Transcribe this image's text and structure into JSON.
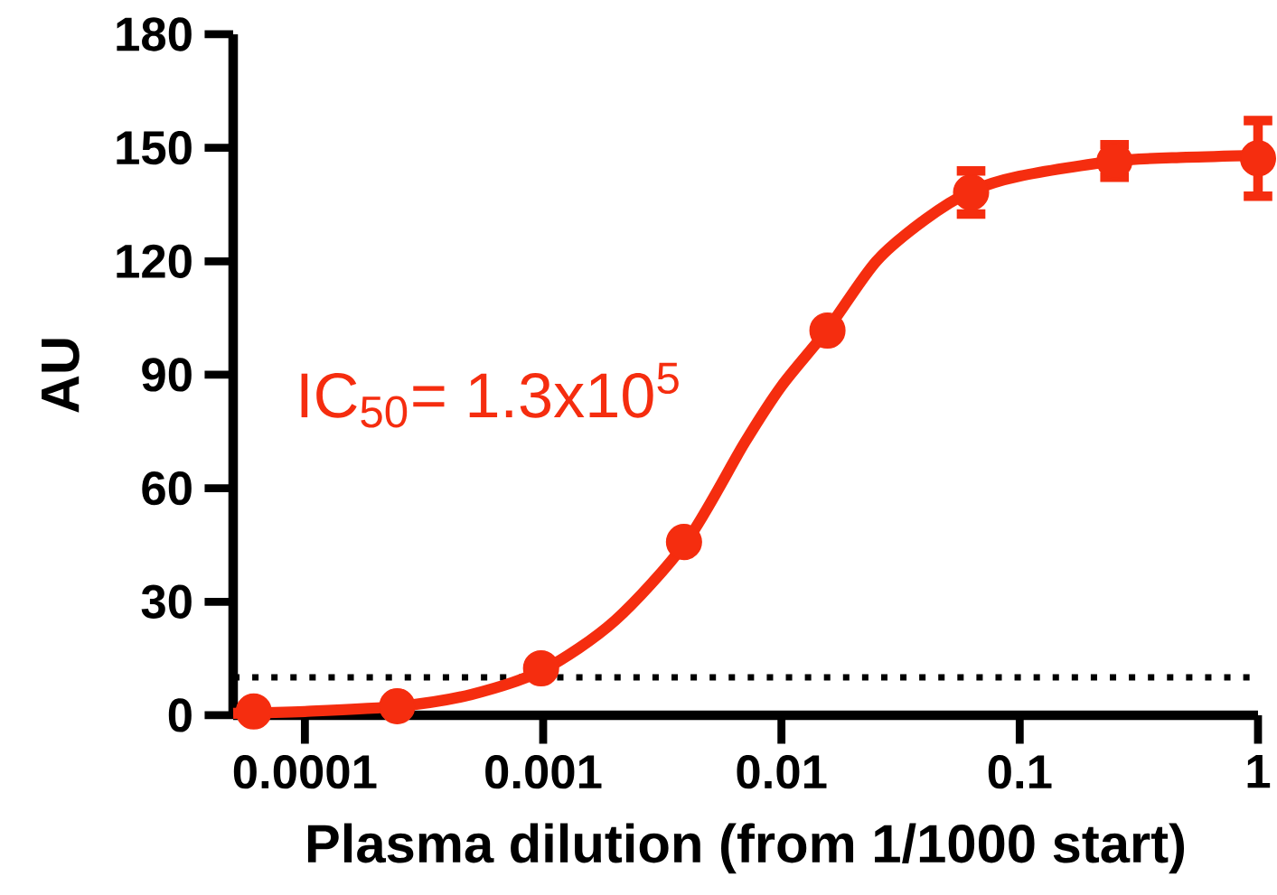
{
  "chart_data": {
    "type": "scatter",
    "xlabel": "Plasma dilution (from 1/1000 start)",
    "ylabel": "AU",
    "log": "x",
    "xlim": [
      5e-05,
      1
    ],
    "ylim": [
      0,
      180
    ],
    "xticks": [
      0.0001,
      0.001,
      0.01,
      0.1,
      1
    ],
    "yticks": [
      0,
      30,
      60,
      90,
      120,
      150,
      180
    ],
    "series": [
      {
        "type": "scatter",
        "color": "#f52d0f",
        "marker": "circle",
        "x": [
          6.1e-05,
          0.000244,
          0.00098,
          0.0039,
          0.0156,
          0.0625,
          0.25,
          1
        ],
        "values": [
          1,
          2.4,
          12.4,
          45.8,
          101.7,
          138.2,
          146.5,
          147.2
        ],
        "errors": [
          null,
          null,
          null,
          null,
          null,
          5.7,
          4.3,
          10
        ]
      },
      {
        "type": "line",
        "color": "#f52d0f",
        "marker": "none",
        "line_style": "solid",
        "x": [
          5e-05,
          0.0001,
          0.00025,
          0.0005,
          0.001,
          0.002,
          0.004,
          0.007,
          0.01,
          0.0156,
          0.025,
          0.04,
          0.0625,
          0.1,
          0.25,
          0.5,
          1
        ],
        "values": [
          0.5,
          1,
          2.4,
          5.5,
          12,
          25,
          46,
          72,
          87,
          102,
          120,
          131,
          138.5,
          142.5,
          146.5,
          147.5,
          148
        ]
      }
    ],
    "ref_lines": [
      {
        "axis": "y",
        "value": 10,
        "color": "#000000",
        "line_style": "dotted"
      }
    ],
    "annotations": [
      "IC$_{50}$= 1.3x10$^{5}$"
    ]
  }
}
